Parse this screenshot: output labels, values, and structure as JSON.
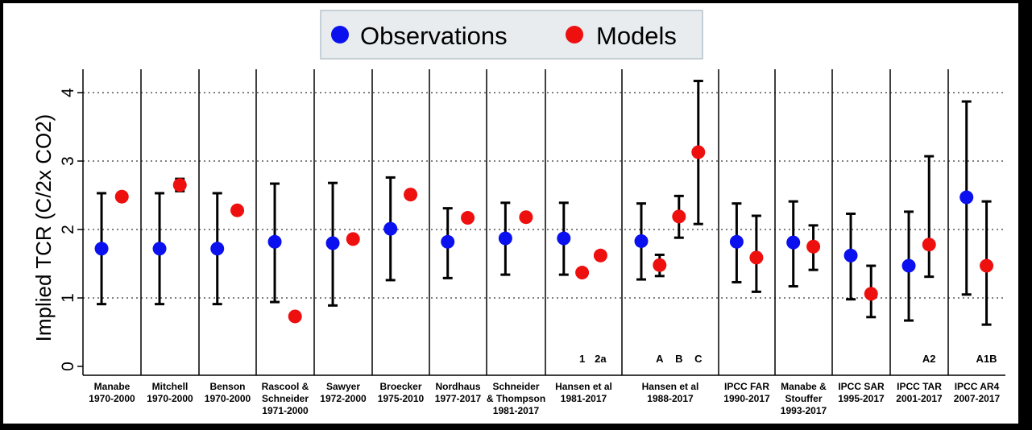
{
  "legend": {
    "items": [
      {
        "label": "Observations",
        "color": "#0a10ee"
      },
      {
        "label": "Models",
        "color": "#ee0f0f"
      }
    ]
  },
  "chart_data": {
    "type": "scatter",
    "ylabel": "Implied TCR (C/2x CO2)",
    "ylim": [
      0,
      4.4
    ],
    "yticks": [
      0,
      1,
      2,
      3,
      4
    ],
    "grid": true,
    "legend_position": "top-center",
    "groups": [
      {
        "line1": "Manabe",
        "line2": "1970-2000",
        "obs": {
          "value": 1.72,
          "low": 0.91,
          "high": 2.53
        },
        "models": [
          {
            "value": 2.48,
            "marker": ""
          }
        ]
      },
      {
        "line1": "Mitchell",
        "line2": "1970-2000",
        "obs": {
          "value": 1.72,
          "low": 0.91,
          "high": 2.53
        },
        "models": [
          {
            "value": 2.65,
            "low": 2.56,
            "high": 2.74,
            "marker": ""
          }
        ]
      },
      {
        "line1": "Benson",
        "line2": "1970-2000",
        "obs": {
          "value": 1.72,
          "low": 0.91,
          "high": 2.53
        },
        "models": [
          {
            "value": 2.28,
            "marker": ""
          }
        ]
      },
      {
        "line1": "Rascool &",
        "line2": "Schneider",
        "line3": "1971-2000",
        "obs": {
          "value": 1.82,
          "low": 0.94,
          "high": 2.67
        },
        "models": [
          {
            "value": 0.73,
            "marker": ""
          }
        ]
      },
      {
        "line1": "Sawyer",
        "line2": "1972-2000",
        "obs": {
          "value": 1.8,
          "low": 0.89,
          "high": 2.68
        },
        "models": [
          {
            "value": 1.86,
            "marker": ""
          }
        ]
      },
      {
        "line1": "Broecker",
        "line2": "1975-2010",
        "obs": {
          "value": 2.01,
          "low": 1.26,
          "high": 2.76
        },
        "models": [
          {
            "value": 2.51,
            "marker": ""
          }
        ]
      },
      {
        "line1": "Nordhaus",
        "line2": "1977-2017",
        "obs": {
          "value": 1.82,
          "low": 1.29,
          "high": 2.31
        },
        "models": [
          {
            "value": 2.17,
            "marker": ""
          }
        ]
      },
      {
        "line1": "Schneider",
        "line2": "& Thompson",
        "line3": "1981-2017",
        "obs": {
          "value": 1.87,
          "low": 1.34,
          "high": 2.39
        },
        "models": [
          {
            "value": 2.18,
            "marker": ""
          }
        ]
      },
      {
        "line1": "Hansen et al",
        "line2": "1981-2017",
        "obs": {
          "value": 1.87,
          "low": 1.34,
          "high": 2.39
        },
        "models": [
          {
            "value": 1.37,
            "marker": "1"
          },
          {
            "value": 1.62,
            "marker": "2a"
          }
        ]
      },
      {
        "line1": "Hansen et al",
        "line2": "1988-2017",
        "obs": {
          "value": 1.83,
          "low": 1.27,
          "high": 2.38
        },
        "models": [
          {
            "value": 1.48,
            "low": 1.32,
            "high": 1.63,
            "marker": "A"
          },
          {
            "value": 2.19,
            "low": 1.88,
            "high": 2.49,
            "marker": "B"
          },
          {
            "value": 3.13,
            "low": 2.08,
            "high": 4.17,
            "marker": "C"
          }
        ]
      },
      {
        "line1": "IPCC FAR",
        "line2": "1990-2017",
        "obs": {
          "value": 1.82,
          "low": 1.23,
          "high": 2.38
        },
        "models": [
          {
            "value": 1.59,
            "low": 1.09,
            "high": 2.2,
            "marker": ""
          }
        ]
      },
      {
        "line1": "Manabe &",
        "line2": "Stouffer",
        "line3": "1993-2017",
        "obs": {
          "value": 1.81,
          "low": 1.17,
          "high": 2.41
        },
        "models": [
          {
            "value": 1.75,
            "low": 1.41,
            "high": 2.06,
            "marker": ""
          }
        ]
      },
      {
        "line1": "IPCC SAR",
        "line2": "1995-2017",
        "obs": {
          "value": 1.62,
          "low": 0.98,
          "high": 2.23
        },
        "models": [
          {
            "value": 1.06,
            "low": 0.72,
            "high": 1.47,
            "marker": ""
          }
        ]
      },
      {
        "line1": "IPCC TAR",
        "line2": "2001-2017",
        "obs": {
          "value": 1.47,
          "low": 0.67,
          "high": 2.26
        },
        "models": [
          {
            "value": 1.78,
            "low": 1.31,
            "high": 3.07,
            "marker": "A2"
          }
        ]
      },
      {
        "line1": "IPCC AR4",
        "line2": "2007-2017",
        "obs": {
          "value": 2.47,
          "low": 1.05,
          "high": 3.87
        },
        "models": [
          {
            "value": 1.47,
            "low": 0.61,
            "high": 2.41,
            "marker": "A1B"
          }
        ]
      }
    ]
  }
}
